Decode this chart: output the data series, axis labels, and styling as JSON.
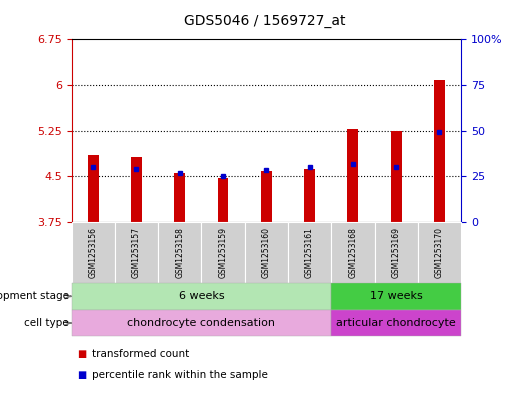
{
  "title": "GDS5046 / 1569727_at",
  "samples": [
    "GSM1253156",
    "GSM1253157",
    "GSM1253158",
    "GSM1253159",
    "GSM1253160",
    "GSM1253161",
    "GSM1253168",
    "GSM1253169",
    "GSM1253170"
  ],
  "red_values": [
    4.85,
    4.82,
    4.55,
    4.48,
    4.58,
    4.62,
    5.28,
    5.25,
    6.08
  ],
  "blue_values": [
    4.65,
    4.62,
    4.55,
    4.51,
    4.61,
    4.65,
    4.7,
    4.65,
    5.23
  ],
  "y_min": 3.75,
  "y_max": 6.75,
  "y_ticks_left": [
    3.75,
    4.5,
    5.25,
    6.0,
    6.75
  ],
  "y_ticks_left_labels": [
    "3.75",
    "4.5",
    "5.25",
    "6",
    "6.75"
  ],
  "y_ticks_right_vals": [
    0,
    25,
    50,
    75,
    100
  ],
  "y_ticks_right_labels": [
    "0",
    "25",
    "50",
    "75",
    "100%"
  ],
  "dotted_lines": [
    4.5,
    5.25,
    6.0
  ],
  "bar_color": "#cc0000",
  "blue_color": "#0000cc",
  "bar_bottom": 3.75,
  "bar_width": 0.25,
  "dev_stage_groups": [
    {
      "label": "6 weeks",
      "start": 0,
      "end": 6,
      "color": "#b3e6b3"
    },
    {
      "label": "17 weeks",
      "start": 6,
      "end": 9,
      "color": "#44cc44"
    }
  ],
  "cell_type_groups": [
    {
      "label": "chondrocyte condensation",
      "start": 0,
      "end": 6,
      "color": "#e8aadd"
    },
    {
      "label": "articular chondrocyte",
      "start": 6,
      "end": 9,
      "color": "#cc44cc"
    }
  ],
  "left_label_dev": "development stage",
  "left_label_cell": "cell type",
  "legend_red": "transformed count",
  "legend_blue": "percentile rank within the sample",
  "plot_bg_color": "#ffffff",
  "sample_bg_color": "#d0d0d0",
  "left_axis_color": "#cc0000",
  "right_axis_color": "#0000cc"
}
